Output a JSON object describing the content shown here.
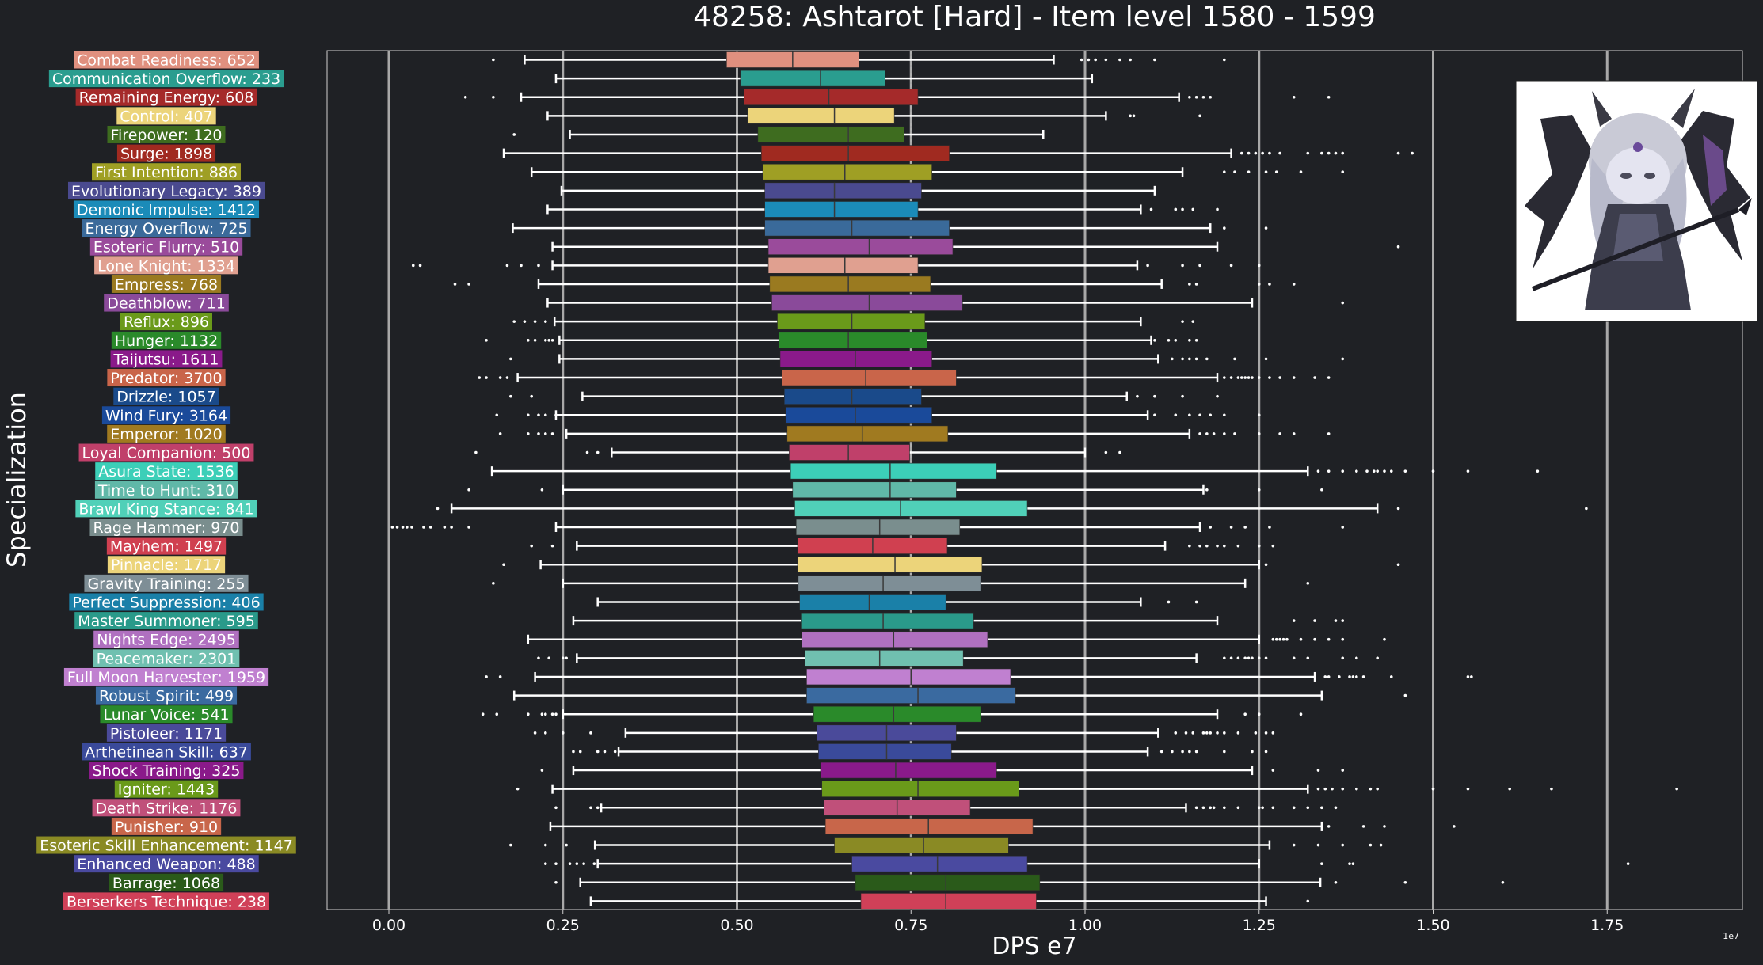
{
  "chart_data": {
    "type": "boxplot",
    "orientation": "horizontal",
    "title": "48258: Ashtarot [Hard] - Item level 1580 - 1599",
    "xlabel": "DPS e7",
    "ylabel": "Specialization",
    "x_offset_label": "1e7",
    "xlim": [
      -0.09,
      1.95
    ],
    "xticks": [
      "0.00",
      "0.25",
      "0.50",
      "0.75",
      "1.00",
      "1.25",
      "1.50",
      "1.75"
    ],
    "xtick_values": [
      0,
      0.25,
      0.5,
      0.75,
      1.0,
      1.25,
      1.5,
      1.75
    ],
    "grid": "vertical",
    "reference_line_value": 0.75,
    "image_icon": "ashtarot-boss-portrait",
    "series": [
      {
        "label": "Combat Readiness: 652",
        "color": "#e0907f",
        "wlo": 0.195,
        "q1": 0.485,
        "med": 0.58,
        "q3": 0.675,
        "whi": 0.955,
        "out": [
          0.15,
          0.995,
          1.005,
          1.015,
          1.03,
          1.05,
          1.065,
          1.1,
          1.2
        ]
      },
      {
        "label": "Communication Overflow: 233",
        "color": "#2a9d8f",
        "wlo": 0.24,
        "q1": 0.505,
        "med": 0.62,
        "q3": 0.713,
        "whi": 1.01,
        "out": []
      },
      {
        "label": "Remaining Energy: 608",
        "color": "#a52a2a",
        "wlo": 0.19,
        "q1": 0.51,
        "med": 0.632,
        "q3": 0.76,
        "whi": 1.135,
        "out": [
          0.11,
          0.15,
          1.15,
          1.16,
          1.17,
          1.18,
          1.3,
          1.35
        ]
      },
      {
        "label": "Control: 407",
        "color": "#ecd47a",
        "wlo": 0.228,
        "q1": 0.515,
        "med": 0.64,
        "q3": 0.726,
        "whi": 1.03,
        "out": [
          1.065,
          1.07,
          1.165
        ]
      },
      {
        "label": "Firepower: 120",
        "color": "#3e6c1f",
        "wlo": 0.26,
        "q1": 0.53,
        "med": 0.66,
        "q3": 0.74,
        "whi": 0.94,
        "out": [
          0.18
        ]
      },
      {
        "label": "Surge: 1898",
        "color": "#a02a20",
        "wlo": 0.165,
        "q1": 0.535,
        "med": 0.66,
        "q3": 0.805,
        "whi": 1.21,
        "out": [
          1.225,
          1.235,
          1.245,
          1.255,
          1.265,
          1.28,
          1.32,
          1.34,
          1.35,
          1.36,
          1.37,
          1.45,
          1.47
        ]
      },
      {
        "label": "First Intention: 886",
        "color": "#9f9f24",
        "wlo": 0.205,
        "q1": 0.537,
        "med": 0.655,
        "q3": 0.78,
        "whi": 1.14,
        "out": [
          1.2,
          1.215,
          1.235,
          1.26,
          1.275,
          1.31,
          1.37
        ]
      },
      {
        "label": "Evolutionary Legacy: 389",
        "color": "#4a4a8f",
        "wlo": 0.248,
        "q1": 0.54,
        "med": 0.64,
        "q3": 0.765,
        "whi": 1.1,
        "out": []
      },
      {
        "label": "Demonic Impulse: 1412",
        "color": "#1b8bb8",
        "wlo": 0.228,
        "q1": 0.54,
        "med": 0.64,
        "q3": 0.76,
        "whi": 1.08,
        "out": [
          1.095,
          1.13,
          1.14,
          1.155,
          1.19
        ]
      },
      {
        "label": "Energy Overflow: 725",
        "color": "#3a6a9a",
        "wlo": 0.178,
        "q1": 0.54,
        "med": 0.665,
        "q3": 0.805,
        "whi": 1.18,
        "out": [
          1.2,
          1.26
        ]
      },
      {
        "label": "Esoteric Flurry: 510",
        "color": "#9a4b9b",
        "wlo": 0.235,
        "q1": 0.545,
        "med": 0.69,
        "q3": 0.81,
        "whi": 1.19,
        "out": [
          1.45
        ]
      },
      {
        "label": "Lone Knight: 1334",
        "color": "#e0a090",
        "wlo": 0.235,
        "q1": 0.545,
        "med": 0.655,
        "q3": 0.76,
        "whi": 1.075,
        "out": [
          0.035,
          0.045,
          0.17,
          0.19,
          0.215,
          1.09,
          1.14,
          1.165,
          1.21,
          1.25
        ]
      },
      {
        "label": "Empress: 768",
        "color": "#9a7a20",
        "wlo": 0.215,
        "q1": 0.547,
        "med": 0.66,
        "q3": 0.778,
        "whi": 1.11,
        "out": [
          0.095,
          0.115,
          1.15,
          1.16,
          1.25,
          1.265,
          1.3
        ]
      },
      {
        "label": "Deathblow: 711",
        "color": "#8a4a9a",
        "wlo": 0.228,
        "q1": 0.55,
        "med": 0.69,
        "q3": 0.824,
        "whi": 1.24,
        "out": [
          1.37
        ]
      },
      {
        "label": "Reflux: 896",
        "color": "#6a9a1a",
        "wlo": 0.238,
        "q1": 0.558,
        "med": 0.665,
        "q3": 0.77,
        "whi": 1.08,
        "out": [
          0.18,
          0.195,
          0.21,
          0.225,
          1.14,
          1.155
        ]
      },
      {
        "label": "Hunger: 1132",
        "color": "#2a8a2a",
        "wlo": 0.245,
        "q1": 0.56,
        "med": 0.66,
        "q3": 0.773,
        "whi": 1.095,
        "out": [
          0.14,
          0.2,
          0.21,
          0.225,
          0.23,
          0.235,
          1.1,
          1.12,
          1.13,
          1.15,
          1.16
        ]
      },
      {
        "label": "Taijutsu: 1611",
        "color": "#8a1a8a",
        "wlo": 0.245,
        "q1": 0.562,
        "med": 0.67,
        "q3": 0.78,
        "whi": 1.105,
        "out": [
          0.175,
          1.125,
          1.14,
          1.15,
          1.16,
          1.175,
          1.215,
          1.26,
          1.37
        ]
      },
      {
        "label": "Predator: 3700",
        "color": "#c9654a",
        "wlo": 0.185,
        "q1": 0.565,
        "med": 0.685,
        "q3": 0.815,
        "whi": 1.19,
        "out": [
          0.13,
          0.14,
          0.16,
          0.17,
          1.2,
          1.21,
          1.22,
          1.225,
          1.23,
          1.235,
          1.24,
          1.25,
          1.265,
          1.28,
          1.3,
          1.33,
          1.35
        ]
      },
      {
        "label": "Drizzle: 1057",
        "color": "#1a4a8a",
        "wlo": 0.278,
        "q1": 0.568,
        "med": 0.665,
        "q3": 0.765,
        "whi": 1.06,
        "out": [
          0.175,
          0.205,
          1.075,
          1.1,
          1.14,
          1.19
        ]
      },
      {
        "label": "Wind Fury: 3164",
        "color": "#1a4a9a",
        "wlo": 0.24,
        "q1": 0.57,
        "med": 0.67,
        "q3": 0.78,
        "whi": 1.09,
        "out": [
          0.155,
          0.2,
          0.215,
          0.225,
          0.24,
          1.1,
          1.13,
          1.15,
          1.165,
          1.18,
          1.2,
          1.25
        ]
      },
      {
        "label": "Emperor: 1020",
        "color": "#a07a20",
        "wlo": 0.255,
        "q1": 0.572,
        "med": 0.68,
        "q3": 0.803,
        "whi": 1.15,
        "out": [
          0.16,
          0.2,
          0.215,
          0.225,
          0.235,
          1.165,
          1.175,
          1.185,
          1.2,
          1.215,
          1.25,
          1.28,
          1.3,
          1.35
        ]
      },
      {
        "label": "Loyal Companion: 500",
        "color": "#c0406a",
        "wlo": 0.32,
        "q1": 0.575,
        "med": 0.66,
        "q3": 0.748,
        "whi": 1.0,
        "out": [
          0.125,
          0.285,
          0.3,
          1.03,
          1.05
        ]
      },
      {
        "label": "Asura State: 1536",
        "color": "#3ccfb8",
        "wlo": 0.148,
        "q1": 0.577,
        "med": 0.72,
        "q3": 0.873,
        "whi": 1.32,
        "out": [
          1.335,
          1.35,
          1.37,
          1.39,
          1.405,
          1.415,
          1.42,
          1.43,
          1.44,
          1.46,
          1.5,
          1.55,
          1.65
        ]
      },
      {
        "label": "Time to Hunt: 310",
        "color": "#60b8a8",
        "wlo": 0.25,
        "q1": 0.58,
        "med": 0.72,
        "q3": 0.815,
        "whi": 1.17,
        "out": [
          0.115,
          0.22,
          1.175,
          1.25,
          1.34
        ]
      },
      {
        "label": "Brawl King Stance: 841",
        "color": "#50d0b8",
        "wlo": 0.09,
        "q1": 0.583,
        "med": 0.735,
        "q3": 0.917,
        "whi": 1.42,
        "out": [
          0.07,
          1.45,
          1.72
        ]
      },
      {
        "label": "Rage Hammer: 970",
        "color": "#7a8e8e",
        "wlo": 0.24,
        "q1": 0.585,
        "med": 0.705,
        "q3": 0.82,
        "whi": 1.165,
        "out": [
          0.005,
          0.012,
          0.02,
          0.026,
          0.033,
          0.05,
          0.06,
          0.08,
          0.09,
          0.115,
          1.18,
          1.21,
          1.23,
          1.265,
          1.37
        ]
      },
      {
        "label": "Mayhem: 1497",
        "color": "#d04050",
        "wlo": 0.27,
        "q1": 0.587,
        "med": 0.695,
        "q3": 0.802,
        "whi": 1.115,
        "out": [
          0.205,
          0.235,
          1.15,
          1.165,
          1.175,
          1.19,
          1.2,
          1.22,
          1.25,
          1.27
        ]
      },
      {
        "label": "Pinnacle: 1717",
        "color": "#ecd47a",
        "wlo": 0.218,
        "q1": 0.587,
        "med": 0.727,
        "q3": 0.852,
        "whi": 1.25,
        "out": [
          0.165,
          1.26,
          1.45
        ]
      },
      {
        "label": "Gravity Training: 255",
        "color": "#7e8e96",
        "wlo": 0.25,
        "q1": 0.588,
        "med": 0.71,
        "q3": 0.85,
        "whi": 1.23,
        "out": [
          0.15,
          1.32
        ]
      },
      {
        "label": "Perfect Suppression: 406",
        "color": "#1a80a8",
        "wlo": 0.3,
        "q1": 0.59,
        "med": 0.69,
        "q3": 0.8,
        "whi": 1.08,
        "out": [
          1.12,
          1.16
        ]
      },
      {
        "label": "Master Summoner: 595",
        "color": "#2a9a8a",
        "wlo": 0.265,
        "q1": 0.592,
        "med": 0.71,
        "q3": 0.84,
        "whi": 1.19,
        "out": [
          1.3,
          1.33,
          1.36,
          1.37
        ]
      },
      {
        "label": "Nights Edge: 2495",
        "color": "#b070c0",
        "wlo": 0.2,
        "q1": 0.593,
        "med": 0.725,
        "q3": 0.86,
        "whi": 1.25,
        "out": [
          1.27,
          1.275,
          1.28,
          1.285,
          1.29,
          1.31,
          1.33,
          1.35,
          1.37,
          1.43
        ]
      },
      {
        "label": "Peacemaker: 2301",
        "color": "#70c0b0",
        "wlo": 0.27,
        "q1": 0.598,
        "med": 0.705,
        "q3": 0.825,
        "whi": 1.16,
        "out": [
          0.215,
          0.23,
          0.25,
          0.255,
          1.2,
          1.21,
          1.22,
          1.23,
          1.235,
          1.24,
          1.25,
          1.26,
          1.3,
          1.32,
          1.37,
          1.39,
          1.42
        ]
      },
      {
        "label": "Full Moon Harvester: 1959",
        "color": "#c080d0",
        "wlo": 0.21,
        "q1": 0.6,
        "med": 0.75,
        "q3": 0.893,
        "whi": 1.33,
        "out": [
          0.14,
          0.16,
          1.345,
          1.35,
          1.365,
          1.38,
          1.385,
          1.39,
          1.4,
          1.44,
          1.55,
          1.555
        ]
      },
      {
        "label": "Robust Spirit: 499",
        "color": "#3a6aa0",
        "wlo": 0.18,
        "q1": 0.6,
        "med": 0.76,
        "q3": 0.9,
        "whi": 1.34,
        "out": [
          1.46
        ]
      },
      {
        "label": "Lunar Voice: 541",
        "color": "#2a8a2a",
        "wlo": 0.25,
        "q1": 0.61,
        "med": 0.725,
        "q3": 0.85,
        "whi": 1.19,
        "out": [
          0.135,
          0.155,
          0.2,
          0.22,
          0.225,
          0.235,
          0.24,
          1.23,
          1.25,
          1.31
        ]
      },
      {
        "label": "Pistoleer: 1171",
        "color": "#4a4a9a",
        "wlo": 0.34,
        "q1": 0.615,
        "med": 0.715,
        "q3": 0.815,
        "whi": 1.105,
        "out": [
          0.21,
          0.225,
          0.25,
          0.29,
          1.13,
          1.145,
          1.155,
          1.17,
          1.175,
          1.18,
          1.19,
          1.2,
          1.22,
          1.245,
          1.26,
          1.27
        ]
      },
      {
        "label": "Arthetinean Skill: 637",
        "color": "#3a4a9a",
        "wlo": 0.33,
        "q1": 0.617,
        "med": 0.715,
        "q3": 0.808,
        "whi": 1.09,
        "out": [
          0.265,
          0.275,
          0.3,
          0.31,
          0.325,
          1.11,
          1.125,
          1.14,
          1.15,
          1.16,
          1.2,
          1.24,
          1.26
        ]
      },
      {
        "label": "Shock Training: 325",
        "color": "#8a1a8a",
        "wlo": 0.265,
        "q1": 0.62,
        "med": 0.728,
        "q3": 0.873,
        "whi": 1.24,
        "out": [
          0.22,
          1.27,
          1.335,
          1.37
        ]
      },
      {
        "label": "Igniter: 1443",
        "color": "#6a9a1a",
        "wlo": 0.235,
        "q1": 0.622,
        "med": 0.76,
        "q3": 0.905,
        "whi": 1.32,
        "out": [
          0.185,
          1.335,
          1.345,
          1.355,
          1.37,
          1.39,
          1.41,
          1.42,
          1.5,
          1.55,
          1.61,
          1.67,
          1.85
        ]
      },
      {
        "label": "Death Strike: 1176",
        "color": "#c0507a",
        "wlo": 0.305,
        "q1": 0.625,
        "med": 0.73,
        "q3": 0.835,
        "whi": 1.145,
        "out": [
          0.24,
          0.29,
          0.3,
          1.16,
          1.17,
          1.18,
          1.185,
          1.2,
          1.22,
          1.25,
          1.255,
          1.27,
          1.3,
          1.32,
          1.34,
          1.36
        ]
      },
      {
        "label": "Punisher: 910",
        "color": "#c8664a",
        "wlo": 0.232,
        "q1": 0.627,
        "med": 0.775,
        "q3": 0.925,
        "whi": 1.34,
        "out": [
          1.35,
          1.4,
          1.43,
          1.53
        ]
      },
      {
        "label": "Esoteric Skill Enhancement: 1147",
        "color": "#8a8a24",
        "wlo": 0.296,
        "q1": 0.64,
        "med": 0.768,
        "q3": 0.89,
        "whi": 1.265,
        "out": [
          0.175,
          0.225,
          0.255,
          1.3,
          1.335,
          1.37,
          1.41,
          1.425
        ]
      },
      {
        "label": "Enhanced Weapon: 488",
        "color": "#4a4aa0",
        "wlo": 0.3,
        "q1": 0.665,
        "med": 0.788,
        "q3": 0.917,
        "whi": 1.25,
        "out": [
          0.225,
          0.24,
          0.26,
          0.27,
          0.28,
          0.295,
          1.34,
          1.38,
          1.385,
          1.78
        ]
      },
      {
        "label": "Barrage: 1068",
        "color": "#2a5a1a",
        "wlo": 0.275,
        "q1": 0.67,
        "med": 0.8,
        "q3": 0.935,
        "whi": 1.338,
        "out": [
          0.24,
          1.36,
          1.46,
          1.6
        ]
      },
      {
        "label": "Berserkers Technique: 238",
        "color": "#d04058",
        "wlo": 0.29,
        "q1": 0.678,
        "med": 0.8,
        "q3": 0.93,
        "whi": 1.26,
        "out": [
          1.32
        ]
      }
    ]
  }
}
